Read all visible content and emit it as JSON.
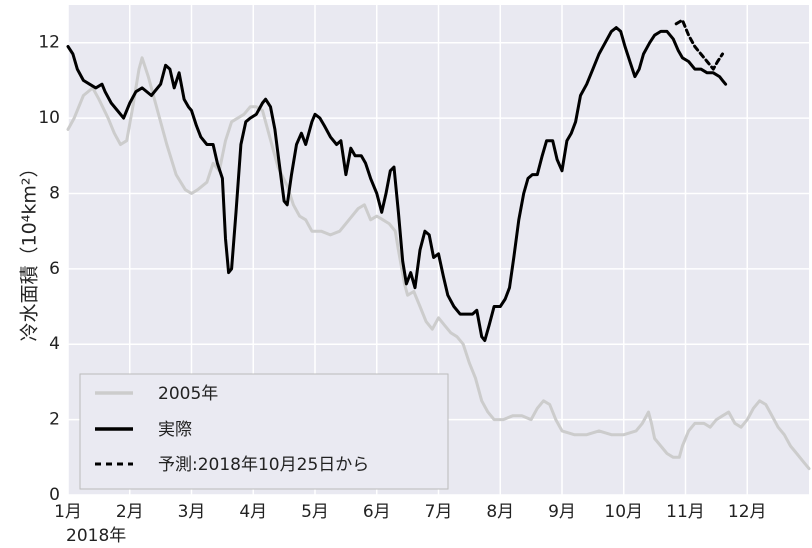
{
  "chart_data": {
    "type": "line",
    "ylabel": "冷水面積（10⁴km²）",
    "ylim": [
      0,
      13
    ],
    "xlim": [
      1,
      13
    ],
    "yticks": [
      0,
      2,
      4,
      6,
      8,
      10,
      12
    ],
    "xticks": [
      {
        "v": 1,
        "label": "1月"
      },
      {
        "v": 2,
        "label": "2月"
      },
      {
        "v": 3,
        "label": "3月"
      },
      {
        "v": 4,
        "label": "4月"
      },
      {
        "v": 5,
        "label": "5月"
      },
      {
        "v": 6,
        "label": "6月"
      },
      {
        "v": 7,
        "label": "7月"
      },
      {
        "v": 8,
        "label": "8月"
      },
      {
        "v": 9,
        "label": "9月"
      },
      {
        "v": 10,
        "label": "10月"
      },
      {
        "v": 11,
        "label": "11月"
      },
      {
        "v": 12,
        "label": "12月"
      }
    ],
    "year_label": "2018年",
    "grid": true,
    "legend_position": "bottom-left",
    "series": [
      {
        "name": "2005年",
        "color": "#cccccc",
        "style": "solid",
        "points": [
          [
            1.0,
            9.7
          ],
          [
            1.1,
            10.0
          ],
          [
            1.25,
            10.6
          ],
          [
            1.4,
            10.8
          ],
          [
            1.5,
            10.5
          ],
          [
            1.65,
            10.0
          ],
          [
            1.75,
            9.6
          ],
          [
            1.85,
            9.3
          ],
          [
            1.95,
            9.4
          ],
          [
            2.05,
            10.3
          ],
          [
            2.15,
            11.3
          ],
          [
            2.2,
            11.6
          ],
          [
            2.3,
            11.1
          ],
          [
            2.45,
            10.2
          ],
          [
            2.6,
            9.3
          ],
          [
            2.75,
            8.5
          ],
          [
            2.9,
            8.1
          ],
          [
            3.0,
            8.0
          ],
          [
            3.1,
            8.1
          ],
          [
            3.25,
            8.3
          ],
          [
            3.35,
            8.8
          ],
          [
            3.45,
            8.6
          ],
          [
            3.55,
            9.4
          ],
          [
            3.65,
            9.9
          ],
          [
            3.75,
            10.0
          ],
          [
            3.85,
            10.1
          ],
          [
            3.95,
            10.3
          ],
          [
            4.05,
            10.3
          ],
          [
            4.15,
            10.2
          ],
          [
            4.25,
            9.6
          ],
          [
            4.4,
            8.7
          ],
          [
            4.55,
            8.2
          ],
          [
            4.65,
            7.7
          ],
          [
            4.75,
            7.4
          ],
          [
            4.85,
            7.3
          ],
          [
            4.95,
            7.0
          ],
          [
            5.1,
            7.0
          ],
          [
            5.25,
            6.9
          ],
          [
            5.4,
            7.0
          ],
          [
            5.55,
            7.3
          ],
          [
            5.7,
            7.6
          ],
          [
            5.8,
            7.7
          ],
          [
            5.9,
            7.3
          ],
          [
            6.0,
            7.4
          ],
          [
            6.1,
            7.3
          ],
          [
            6.2,
            7.2
          ],
          [
            6.3,
            7.0
          ],
          [
            6.35,
            6.5
          ],
          [
            6.45,
            5.6
          ],
          [
            6.5,
            5.3
          ],
          [
            6.6,
            5.4
          ],
          [
            6.7,
            5.0
          ],
          [
            6.8,
            4.6
          ],
          [
            6.9,
            4.4
          ],
          [
            7.0,
            4.7
          ],
          [
            7.1,
            4.5
          ],
          [
            7.2,
            4.3
          ],
          [
            7.3,
            4.2
          ],
          [
            7.4,
            4.0
          ],
          [
            7.5,
            3.5
          ],
          [
            7.6,
            3.1
          ],
          [
            7.7,
            2.5
          ],
          [
            7.8,
            2.2
          ],
          [
            7.9,
            2.0
          ],
          [
            8.05,
            2.0
          ],
          [
            8.2,
            2.1
          ],
          [
            8.35,
            2.1
          ],
          [
            8.5,
            2.0
          ],
          [
            8.6,
            2.3
          ],
          [
            8.7,
            2.5
          ],
          [
            8.8,
            2.4
          ],
          [
            8.9,
            2.0
          ],
          [
            9.0,
            1.7
          ],
          [
            9.2,
            1.6
          ],
          [
            9.4,
            1.6
          ],
          [
            9.6,
            1.7
          ],
          [
            9.8,
            1.6
          ],
          [
            10.0,
            1.6
          ],
          [
            10.2,
            1.7
          ],
          [
            10.3,
            1.9
          ],
          [
            10.4,
            2.2
          ],
          [
            10.45,
            1.9
          ],
          [
            10.5,
            1.5
          ],
          [
            10.6,
            1.3
          ],
          [
            10.7,
            1.1
          ],
          [
            10.8,
            1.0
          ],
          [
            10.9,
            1.0
          ],
          [
            10.95,
            1.3
          ],
          [
            11.05,
            1.7
          ],
          [
            11.15,
            1.9
          ],
          [
            11.3,
            1.9
          ],
          [
            11.4,
            1.8
          ],
          [
            11.5,
            2.0
          ],
          [
            11.6,
            2.1
          ],
          [
            11.7,
            2.2
          ],
          [
            11.8,
            1.9
          ],
          [
            11.9,
            1.8
          ],
          [
            12.0,
            2.0
          ],
          [
            12.1,
            2.3
          ],
          [
            12.2,
            2.5
          ],
          [
            12.3,
            2.4
          ],
          [
            12.4,
            2.1
          ],
          [
            12.5,
            1.8
          ],
          [
            12.6,
            1.6
          ],
          [
            12.7,
            1.3
          ],
          [
            12.8,
            1.1
          ],
          [
            12.9,
            0.9
          ],
          [
            13.0,
            0.7
          ]
        ]
      },
      {
        "name": "実際",
        "color": "#000000",
        "style": "solid",
        "points": [
          [
            1.0,
            11.9
          ],
          [
            1.08,
            11.7
          ],
          [
            1.15,
            11.3
          ],
          [
            1.25,
            11.0
          ],
          [
            1.35,
            10.9
          ],
          [
            1.45,
            10.8
          ],
          [
            1.55,
            10.9
          ],
          [
            1.6,
            10.7
          ],
          [
            1.7,
            10.4
          ],
          [
            1.8,
            10.2
          ],
          [
            1.9,
            10.0
          ],
          [
            2.0,
            10.4
          ],
          [
            2.1,
            10.7
          ],
          [
            2.2,
            10.8
          ],
          [
            2.35,
            10.6
          ],
          [
            2.5,
            10.9
          ],
          [
            2.58,
            11.4
          ],
          [
            2.65,
            11.3
          ],
          [
            2.72,
            10.8
          ],
          [
            2.8,
            11.2
          ],
          [
            2.88,
            10.5
          ],
          [
            2.95,
            10.3
          ],
          [
            3.0,
            10.2
          ],
          [
            3.08,
            9.8
          ],
          [
            3.15,
            9.5
          ],
          [
            3.25,
            9.3
          ],
          [
            3.35,
            9.3
          ],
          [
            3.42,
            8.8
          ],
          [
            3.5,
            8.4
          ],
          [
            3.55,
            6.8
          ],
          [
            3.6,
            5.9
          ],
          [
            3.65,
            6.0
          ],
          [
            3.72,
            7.5
          ],
          [
            3.8,
            9.3
          ],
          [
            3.88,
            9.9
          ],
          [
            3.95,
            10.0
          ],
          [
            4.05,
            10.1
          ],
          [
            4.15,
            10.4
          ],
          [
            4.2,
            10.5
          ],
          [
            4.28,
            10.3
          ],
          [
            4.35,
            9.7
          ],
          [
            4.42,
            8.8
          ],
          [
            4.5,
            7.8
          ],
          [
            4.55,
            7.7
          ],
          [
            4.62,
            8.5
          ],
          [
            4.7,
            9.3
          ],
          [
            4.78,
            9.6
          ],
          [
            4.85,
            9.3
          ],
          [
            4.95,
            9.9
          ],
          [
            5.0,
            10.1
          ],
          [
            5.08,
            10.0
          ],
          [
            5.15,
            9.8
          ],
          [
            5.25,
            9.5
          ],
          [
            5.35,
            9.3
          ],
          [
            5.42,
            9.4
          ],
          [
            5.5,
            8.5
          ],
          [
            5.58,
            9.2
          ],
          [
            5.65,
            9.0
          ],
          [
            5.75,
            9.0
          ],
          [
            5.82,
            8.8
          ],
          [
            5.9,
            8.4
          ],
          [
            6.0,
            8.0
          ],
          [
            6.08,
            7.5
          ],
          [
            6.15,
            8.0
          ],
          [
            6.22,
            8.6
          ],
          [
            6.28,
            8.7
          ],
          [
            6.35,
            7.5
          ],
          [
            6.42,
            6.2
          ],
          [
            6.48,
            5.6
          ],
          [
            6.55,
            5.9
          ],
          [
            6.62,
            5.5
          ],
          [
            6.7,
            6.5
          ],
          [
            6.78,
            7.0
          ],
          [
            6.85,
            6.9
          ],
          [
            6.92,
            6.3
          ],
          [
            7.0,
            6.4
          ],
          [
            7.08,
            5.8
          ],
          [
            7.15,
            5.3
          ],
          [
            7.25,
            5.0
          ],
          [
            7.35,
            4.8
          ],
          [
            7.45,
            4.8
          ],
          [
            7.55,
            4.8
          ],
          [
            7.62,
            4.9
          ],
          [
            7.7,
            4.2
          ],
          [
            7.75,
            4.1
          ],
          [
            7.82,
            4.5
          ],
          [
            7.9,
            5.0
          ],
          [
            8.0,
            5.0
          ],
          [
            8.08,
            5.2
          ],
          [
            8.15,
            5.5
          ],
          [
            8.22,
            6.3
          ],
          [
            8.3,
            7.3
          ],
          [
            8.38,
            8.0
          ],
          [
            8.45,
            8.4
          ],
          [
            8.52,
            8.5
          ],
          [
            8.6,
            8.5
          ],
          [
            8.68,
            9.0
          ],
          [
            8.75,
            9.4
          ],
          [
            8.85,
            9.4
          ],
          [
            8.92,
            8.9
          ],
          [
            9.0,
            8.6
          ],
          [
            9.08,
            9.4
          ],
          [
            9.15,
            9.6
          ],
          [
            9.22,
            9.9
          ],
          [
            9.3,
            10.6
          ],
          [
            9.4,
            10.9
          ],
          [
            9.5,
            11.3
          ],
          [
            9.6,
            11.7
          ],
          [
            9.7,
            12.0
          ],
          [
            9.8,
            12.3
          ],
          [
            9.88,
            12.4
          ],
          [
            9.95,
            12.3
          ],
          [
            10.02,
            11.9
          ],
          [
            10.1,
            11.5
          ],
          [
            10.18,
            11.1
          ],
          [
            10.25,
            11.3
          ],
          [
            10.32,
            11.7
          ],
          [
            10.42,
            12.0
          ],
          [
            10.5,
            12.2
          ],
          [
            10.6,
            12.3
          ],
          [
            10.7,
            12.3
          ],
          [
            10.8,
            12.1
          ],
          [
            10.88,
            11.8
          ],
          [
            10.95,
            11.6
          ],
          [
            11.05,
            11.5
          ],
          [
            11.15,
            11.3
          ],
          [
            11.25,
            11.3
          ],
          [
            11.35,
            11.2
          ],
          [
            11.45,
            11.2
          ],
          [
            11.55,
            11.1
          ],
          [
            11.6,
            11.0
          ],
          [
            11.65,
            10.9
          ]
        ]
      },
      {
        "name": "予測:2018年10月25日から",
        "color": "#000000",
        "style": "dashed",
        "points": [
          [
            10.85,
            12.5
          ],
          [
            10.95,
            12.6
          ],
          [
            11.05,
            12.2
          ],
          [
            11.15,
            11.9
          ],
          [
            11.25,
            11.7
          ],
          [
            11.35,
            11.5
          ],
          [
            11.45,
            11.3
          ],
          [
            11.52,
            11.5
          ],
          [
            11.6,
            11.7
          ]
        ]
      }
    ]
  }
}
